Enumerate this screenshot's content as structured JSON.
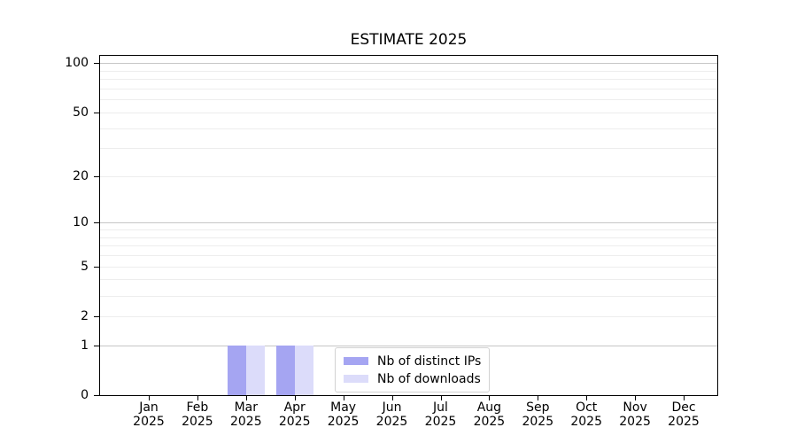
{
  "chart_data": {
    "type": "bar",
    "title": "ESTIMATE 2025",
    "scale": "log1p",
    "categories": [
      "Jan 2025",
      "Feb 2025",
      "Mar 2025",
      "Apr 2025",
      "May 2025",
      "Jun 2025",
      "Jul 2025",
      "Aug 2025",
      "Sep 2025",
      "Oct 2025",
      "Nov 2025",
      "Dec 2025"
    ],
    "series": [
      {
        "name": "Nb of distinct IPs",
        "color": "#a5a5f2",
        "values": [
          0,
          0,
          1,
          1,
          0,
          0,
          0,
          0,
          0,
          0,
          0,
          0
        ]
      },
      {
        "name": "Nb of downloads",
        "color": "#dcdcfa",
        "values": [
          0,
          0,
          1,
          1,
          0,
          0,
          0,
          0,
          0,
          0,
          0,
          0
        ]
      }
    ],
    "y_ticks": [
      0,
      1,
      2,
      5,
      10,
      20,
      50,
      100
    ],
    "ylim": [
      0,
      111
    ],
    "xlabel": "",
    "ylabel": "",
    "grid": {
      "major": [
        1,
        10,
        100
      ],
      "minor": [
        2,
        3,
        4,
        5,
        6,
        7,
        8,
        9,
        20,
        30,
        40,
        50,
        60,
        70,
        80,
        90
      ],
      "major_color": "#c6c6c6",
      "minor_color": "#ededed"
    },
    "legend": {
      "position": "lower center",
      "entries": [
        "Nb of distinct IPs",
        "Nb of downloads"
      ]
    }
  },
  "colors": {
    "background": "#ffffff",
    "spine": "#000000",
    "legend_border": "#d2d2d2"
  }
}
